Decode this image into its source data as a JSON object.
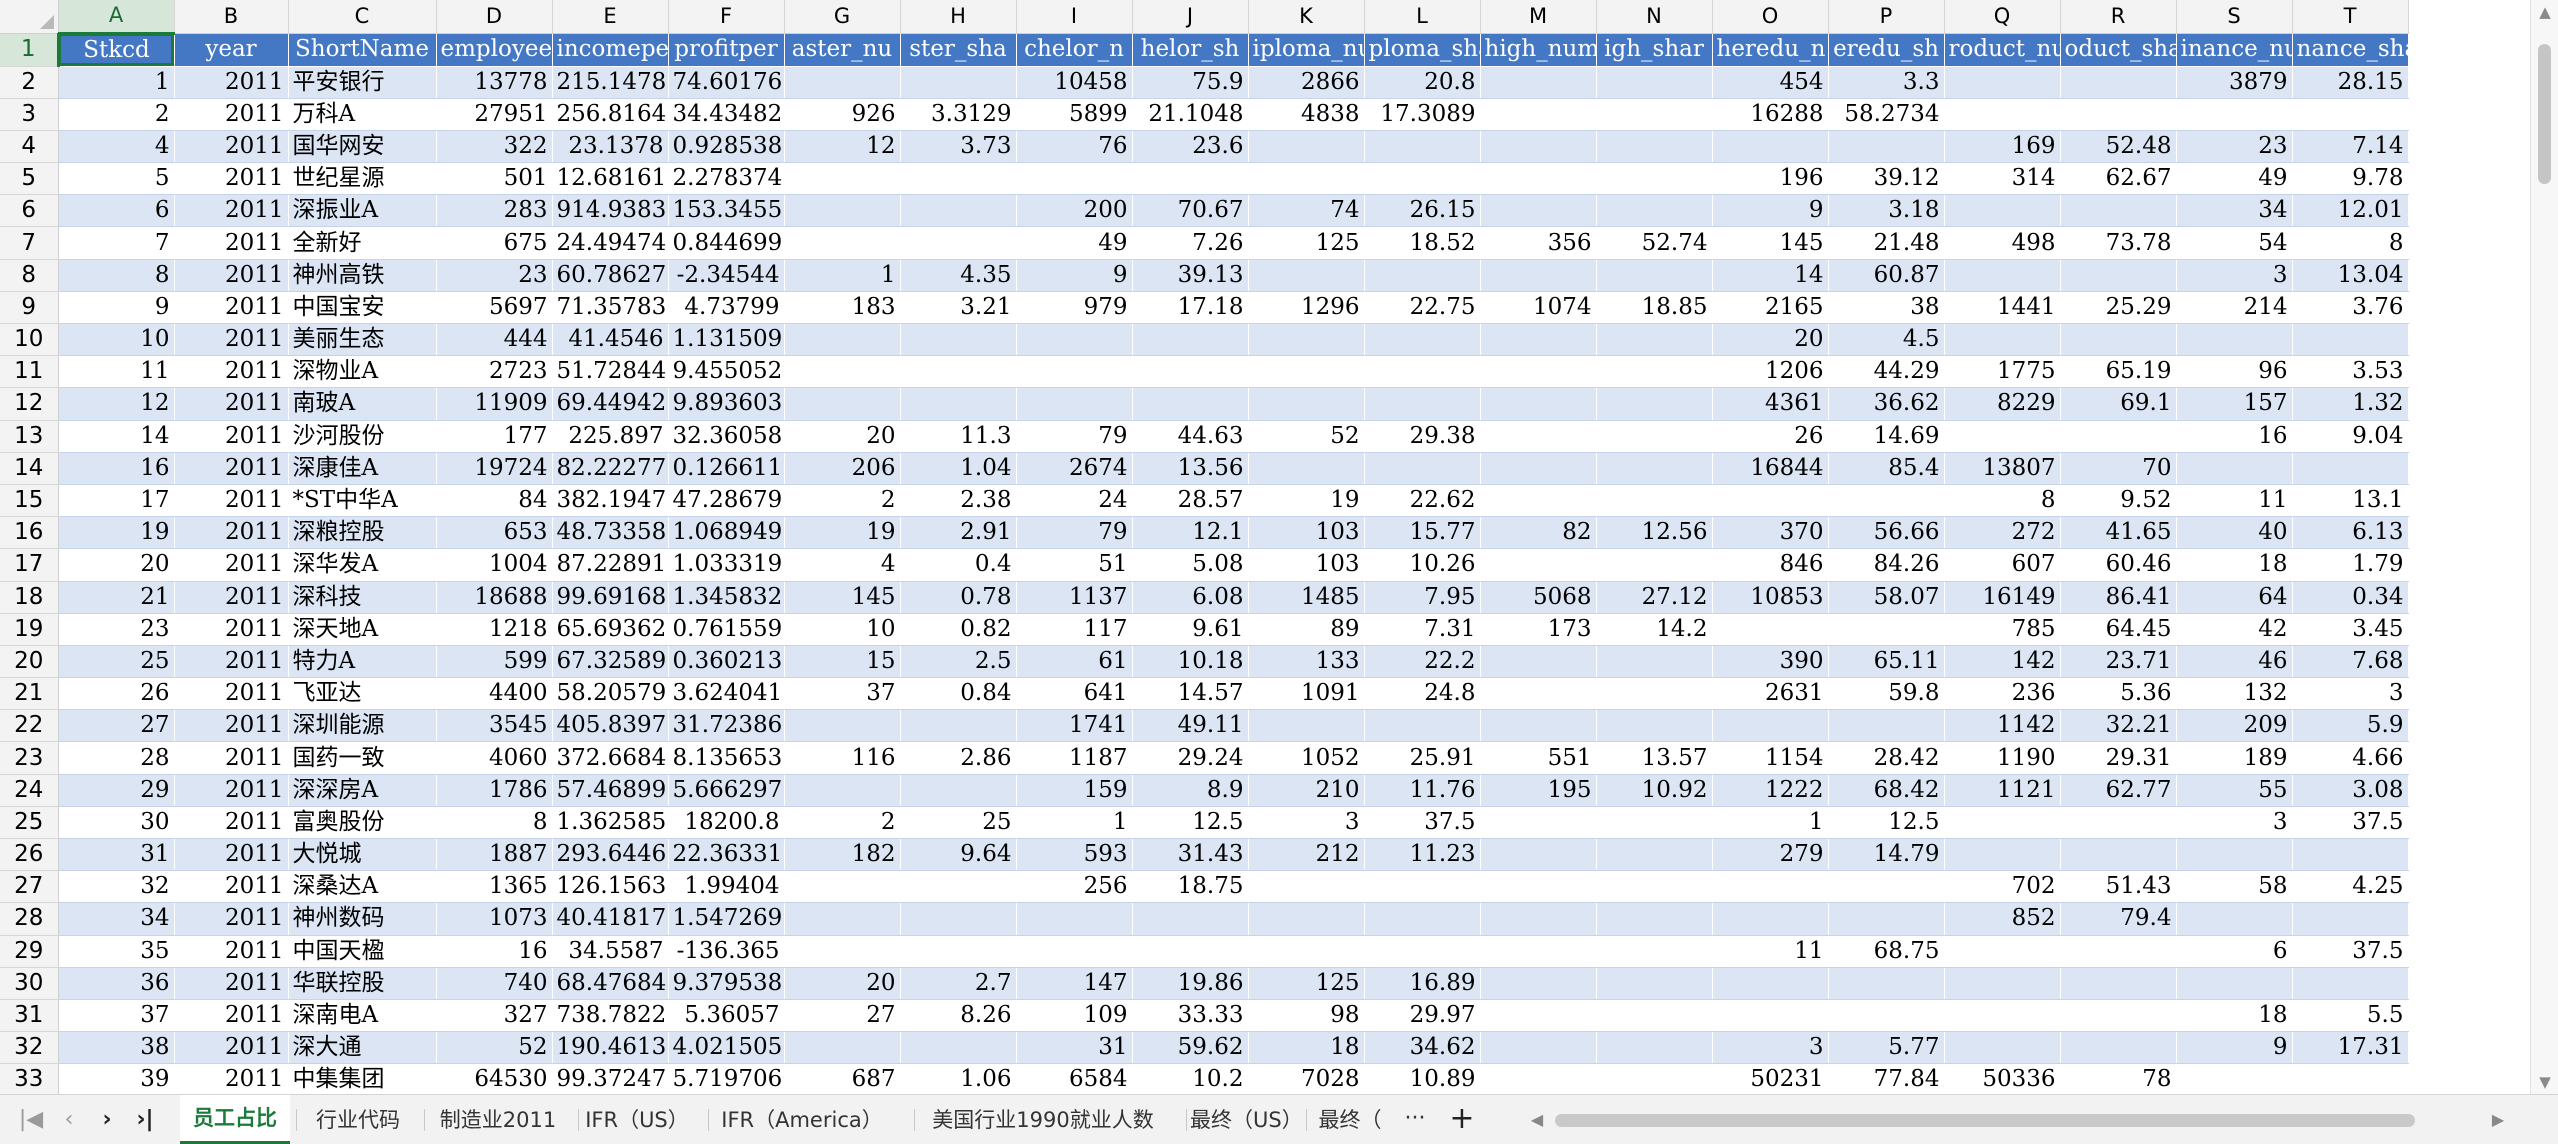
{
  "columns": [
    "A",
    "B",
    "C",
    "D",
    "E",
    "F",
    "G",
    "H",
    "I",
    "J",
    "K",
    "L",
    "M",
    "N",
    "O",
    "P",
    "Q",
    "R",
    "S",
    "T"
  ],
  "active_column": "A",
  "active_row": 1,
  "headers": [
    "Stkcd",
    "year",
    "ShortName",
    "employee",
    "incomeper",
    "profitper",
    "master_nu",
    "master_sha",
    "bachelor_n",
    "bachelor_sh",
    "diploma_nu",
    "diploma_sha",
    "high_num",
    "high_shar",
    "lowheredu_n",
    "lowheredu_sh",
    "product_nu",
    "product_sha",
    "finance_nu",
    "finance_sha"
  ],
  "header_display": [
    "Stkcd",
    "year",
    "ShortName",
    "employee",
    "incomepe",
    "profitper",
    "aster_nu",
    "ster_sha",
    "chelor_n",
    "helor_sh",
    "iploma_nu",
    "ploma_sha",
    "high_num",
    "igh_shar",
    "heredu_n",
    "eredu_sh",
    "roduct_nu",
    "oduct_sha",
    "inance_nu",
    "nance_sha"
  ],
  "rows": [
    [
      "1",
      "2011",
      "平安银行",
      "13778",
      "215.1478",
      "74.60176",
      "",
      "",
      "10458",
      "75.9",
      "2866",
      "20.8",
      "",
      "",
      "454",
      "3.3",
      "",
      "",
      "3879",
      "28.15"
    ],
    [
      "2",
      "2011",
      "万科A",
      "27951",
      "256.8164",
      "34.43482",
      "926",
      "3.3129",
      "5899",
      "21.1048",
      "4838",
      "17.3089",
      "",
      "",
      "16288",
      "58.2734",
      "",
      "",
      "",
      ""
    ],
    [
      "4",
      "2011",
      "国华网安",
      "322",
      "23.1378",
      "0.928538",
      "12",
      "3.73",
      "76",
      "23.6",
      "",
      "",
      "",
      "",
      "",
      "",
      "169",
      "52.48",
      "23",
      "7.14"
    ],
    [
      "5",
      "2011",
      "世纪星源",
      "501",
      "12.68161",
      "2.278374",
      "",
      "",
      "",
      "",
      "",
      "",
      "",
      "",
      "196",
      "39.12",
      "314",
      "62.67",
      "49",
      "9.78"
    ],
    [
      "6",
      "2011",
      "深振业A",
      "283",
      "914.9383",
      "153.3455",
      "",
      "",
      "200",
      "70.67",
      "74",
      "26.15",
      "",
      "",
      "9",
      "3.18",
      "",
      "",
      "34",
      "12.01"
    ],
    [
      "7",
      "2011",
      "全新好",
      "675",
      "24.49474",
      "0.844699",
      "",
      "",
      "49",
      "7.26",
      "125",
      "18.52",
      "356",
      "52.74",
      "145",
      "21.48",
      "498",
      "73.78",
      "54",
      "8"
    ],
    [
      "8",
      "2011",
      "神州高铁",
      "23",
      "60.78627",
      "-2.34544",
      "1",
      "4.35",
      "9",
      "39.13",
      "",
      "",
      "",
      "",
      "14",
      "60.87",
      "",
      "",
      "3",
      "13.04"
    ],
    [
      "9",
      "2011",
      "中国宝安",
      "5697",
      "71.35783",
      "4.73799",
      "183",
      "3.21",
      "979",
      "17.18",
      "1296",
      "22.75",
      "1074",
      "18.85",
      "2165",
      "38",
      "1441",
      "25.29",
      "214",
      "3.76"
    ],
    [
      "10",
      "2011",
      "美丽生态",
      "444",
      "41.4546",
      "1.131509",
      "",
      "",
      "",
      "",
      "",
      "",
      "",
      "",
      "20",
      "4.5",
      "",
      "",
      "",
      ""
    ],
    [
      "11",
      "2011",
      "深物业A",
      "2723",
      "51.72844",
      "9.455052",
      "",
      "",
      "",
      "",
      "",
      "",
      "",
      "",
      "1206",
      "44.29",
      "1775",
      "65.19",
      "96",
      "3.53"
    ],
    [
      "12",
      "2011",
      "南玻A",
      "11909",
      "69.44942",
      "9.893603",
      "",
      "",
      "",
      "",
      "",
      "",
      "",
      "",
      "4361",
      "36.62",
      "8229",
      "69.1",
      "157",
      "1.32"
    ],
    [
      "14",
      "2011",
      "沙河股份",
      "177",
      "225.897",
      "32.36058",
      "20",
      "11.3",
      "79",
      "44.63",
      "52",
      "29.38",
      "",
      "",
      "26",
      "14.69",
      "",
      "",
      "16",
      "9.04"
    ],
    [
      "16",
      "2011",
      "深康佳A",
      "19724",
      "82.22277",
      "0.126611",
      "206",
      "1.04",
      "2674",
      "13.56",
      "",
      "",
      "",
      "",
      "16844",
      "85.4",
      "13807",
      "70",
      "",
      ""
    ],
    [
      "17",
      "2011",
      "*ST中华A",
      "84",
      "382.1947",
      "47.28679",
      "2",
      "2.38",
      "24",
      "28.57",
      "19",
      "22.62",
      "",
      "",
      "",
      "",
      "8",
      "9.52",
      "11",
      "13.1"
    ],
    [
      "19",
      "2011",
      "深粮控股",
      "653",
      "48.73358",
      "1.068949",
      "19",
      "2.91",
      "79",
      "12.1",
      "103",
      "15.77",
      "82",
      "12.56",
      "370",
      "56.66",
      "272",
      "41.65",
      "40",
      "6.13"
    ],
    [
      "20",
      "2011",
      "深华发A",
      "1004",
      "87.22891",
      "1.033319",
      "4",
      "0.4",
      "51",
      "5.08",
      "103",
      "10.26",
      "",
      "",
      "846",
      "84.26",
      "607",
      "60.46",
      "18",
      "1.79"
    ],
    [
      "21",
      "2011",
      "深科技",
      "18688",
      "99.69168",
      "1.345832",
      "145",
      "0.78",
      "1137",
      "6.08",
      "1485",
      "7.95",
      "5068",
      "27.12",
      "10853",
      "58.07",
      "16149",
      "86.41",
      "64",
      "0.34"
    ],
    [
      "23",
      "2011",
      "深天地A",
      "1218",
      "65.69362",
      "0.761559",
      "10",
      "0.82",
      "117",
      "9.61",
      "89",
      "7.31",
      "173",
      "14.2",
      "",
      "",
      "785",
      "64.45",
      "42",
      "3.45"
    ],
    [
      "25",
      "2011",
      "特力A",
      "599",
      "67.32589",
      "0.360213",
      "15",
      "2.5",
      "61",
      "10.18",
      "133",
      "22.2",
      "",
      "",
      "390",
      "65.11",
      "142",
      "23.71",
      "46",
      "7.68"
    ],
    [
      "26",
      "2011",
      "飞亚达",
      "4400",
      "58.20579",
      "3.624041",
      "37",
      "0.84",
      "641",
      "14.57",
      "1091",
      "24.8",
      "",
      "",
      "2631",
      "59.8",
      "236",
      "5.36",
      "132",
      "3"
    ],
    [
      "27",
      "2011",
      "深圳能源",
      "3545",
      "405.8397",
      "31.72386",
      "",
      "",
      "1741",
      "49.11",
      "",
      "",
      "",
      "",
      "",
      "",
      "1142",
      "32.21",
      "209",
      "5.9"
    ],
    [
      "28",
      "2011",
      "国药一致",
      "4060",
      "372.6684",
      "8.135653",
      "116",
      "2.86",
      "1187",
      "29.24",
      "1052",
      "25.91",
      "551",
      "13.57",
      "1154",
      "28.42",
      "1190",
      "29.31",
      "189",
      "4.66"
    ],
    [
      "29",
      "2011",
      "深深房A",
      "1786",
      "57.46899",
      "5.666297",
      "",
      "",
      "159",
      "8.9",
      "210",
      "11.76",
      "195",
      "10.92",
      "1222",
      "68.42",
      "1121",
      "62.77",
      "55",
      "3.08"
    ],
    [
      "30",
      "2011",
      "富奥股份",
      "8",
      "1.362585",
      "18200.8",
      "2",
      "25",
      "1",
      "12.5",
      "3",
      "37.5",
      "",
      "",
      "1",
      "12.5",
      "",
      "",
      "3",
      "37.5"
    ],
    [
      "31",
      "2011",
      "大悦城",
      "1887",
      "293.6446",
      "22.36331",
      "182",
      "9.64",
      "593",
      "31.43",
      "212",
      "11.23",
      "",
      "",
      "279",
      "14.79",
      "",
      "",
      "",
      ""
    ],
    [
      "32",
      "2011",
      "深桑达A",
      "1365",
      "126.1563",
      "1.99404",
      "",
      "",
      "256",
      "18.75",
      "",
      "",
      "",
      "",
      "",
      "",
      "702",
      "51.43",
      "58",
      "4.25"
    ],
    [
      "34",
      "2011",
      "神州数码",
      "1073",
      "40.41817",
      "1.547269",
      "",
      "",
      "",
      "",
      "",
      "",
      "",
      "",
      "",
      "",
      "852",
      "79.4",
      "",
      ""
    ],
    [
      "35",
      "2011",
      "中国天楹",
      "16",
      "34.5587",
      "-136.365",
      "",
      "",
      "",
      "",
      "",
      "",
      "",
      "",
      "11",
      "68.75",
      "",
      "",
      "6",
      "37.5"
    ],
    [
      "36",
      "2011",
      "华联控股",
      "740",
      "68.47684",
      "9.379538",
      "20",
      "2.7",
      "147",
      "19.86",
      "125",
      "16.89",
      "",
      "",
      "",
      "",
      "",
      "",
      "",
      ""
    ],
    [
      "37",
      "2011",
      "深南电A",
      "327",
      "738.7822",
      "5.36057",
      "27",
      "8.26",
      "109",
      "33.33",
      "98",
      "29.97",
      "",
      "",
      "",
      "",
      "",
      "",
      "18",
      "5.5"
    ],
    [
      "38",
      "2011",
      "深大通",
      "52",
      "190.4613",
      "4.021505",
      "",
      "",
      "31",
      "59.62",
      "18",
      "34.62",
      "",
      "",
      "3",
      "5.77",
      "",
      "",
      "9",
      "17.31"
    ],
    [
      "39",
      "2011",
      "中集集团",
      "64530",
      "99.37247",
      "5.719706",
      "687",
      "1.06",
      "6584",
      "10.2",
      "7028",
      "10.89",
      "",
      "",
      "50231",
      "77.84",
      "50336",
      "78",
      "",
      ""
    ]
  ],
  "tabs": [
    "员工占比",
    "行业代码",
    "制造业2011",
    "IFR（US）",
    "IFR（America）",
    "美国行业1990就业人数",
    "最终（US）",
    "最终（"
  ],
  "active_tab": "员工占比",
  "tab_more_label": "···",
  "tab_add_label": "+"
}
